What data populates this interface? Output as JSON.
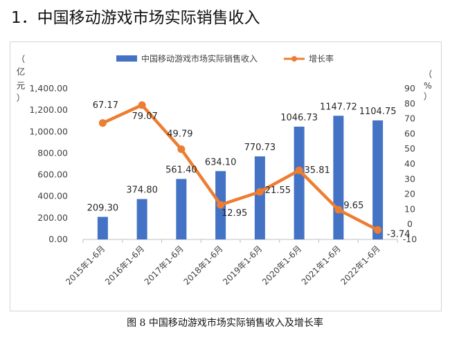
{
  "heading": "1．中国移动游戏市场实际销售收入",
  "caption": "图 8 中国移动游戏市场实际销售收入及增长率",
  "chart_data": {
    "type": "bar+line",
    "categories": [
      "2015年1-6月",
      "2016年1-6月",
      "2017年1-6月",
      "2018年1-6月",
      "2019年1-6月",
      "2020年1-6月",
      "2021年1-6月",
      "2022年1-6月"
    ],
    "series": [
      {
        "name": "中国移动游戏市场实际销售收入",
        "type": "bar",
        "axis": "left",
        "color": "#4472C4",
        "values": [
          209.3,
          374.8,
          561.4,
          634.1,
          770.73,
          1046.73,
          1147.72,
          1104.75
        ],
        "labels": [
          "209.30",
          "374.80",
          "561.40",
          "634.10",
          "770.73",
          "1046.73",
          "1147.72",
          "1104.75"
        ]
      },
      {
        "name": "增长率",
        "type": "line",
        "axis": "right",
        "color": "#ED7D31",
        "values": [
          67.17,
          79.07,
          49.79,
          12.95,
          21.55,
          35.81,
          9.65,
          -3.74
        ],
        "labels": [
          "67.17",
          "79.07",
          "49.79",
          "12.95",
          "21.55",
          "35.81",
          "9.65",
          "-3.74"
        ]
      }
    ],
    "left_axis": {
      "unit": [
        "（",
        "亿",
        "元",
        "）"
      ],
      "range": [
        0,
        1400
      ],
      "ticks": [
        "0.00",
        "200.00",
        "400.00",
        "600.00",
        "800.00",
        "1,000.00",
        "1,200.00",
        "1,400.00"
      ],
      "tick_values": [
        0,
        200,
        400,
        600,
        800,
        1000,
        1200,
        1400
      ]
    },
    "right_axis": {
      "unit": [
        "（",
        "%",
        "）"
      ],
      "range": [
        -10,
        90
      ],
      "ticks": [
        "-10",
        "0",
        "10",
        "20",
        "30",
        "40",
        "50",
        "60",
        "70",
        "80",
        "90"
      ],
      "tick_values": [
        -10,
        0,
        10,
        20,
        30,
        40,
        50,
        60,
        70,
        80,
        90
      ]
    },
    "legend_position": "top",
    "grid": false
  }
}
